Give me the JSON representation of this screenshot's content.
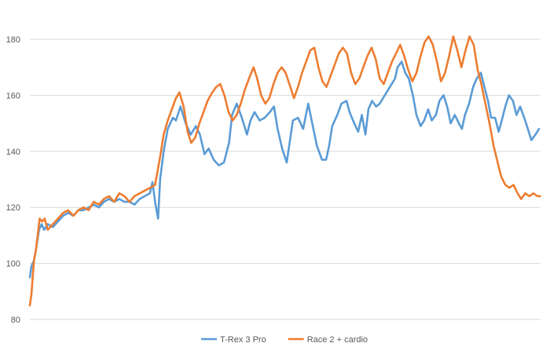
{
  "chart_data": {
    "type": "line",
    "title": "",
    "xlabel": "",
    "ylabel": "",
    "ylim": [
      80,
      180
    ],
    "yticks": [
      80,
      100,
      120,
      140,
      160,
      180
    ],
    "grid": "horizontal",
    "legend": "bottom",
    "x_range": [
      0,
      100
    ],
    "series": [
      {
        "name": "T-Rex 3 Pro",
        "color": "#5B9BD5",
        "points": [
          [
            0,
            95
          ],
          [
            0.3,
            99
          ],
          [
            0.8,
            101
          ],
          [
            1.2,
            105
          ],
          [
            1.8,
            112
          ],
          [
            2.3,
            114
          ],
          [
            2.8,
            112
          ],
          [
            3.5,
            114
          ],
          [
            4.5,
            113
          ],
          [
            5.5,
            115
          ],
          [
            6.5,
            117
          ],
          [
            7.5,
            118
          ],
          [
            8.5,
            117
          ],
          [
            9.5,
            119
          ],
          [
            10.5,
            119
          ],
          [
            11.5,
            120
          ],
          [
            12.5,
            121
          ],
          [
            13.5,
            120
          ],
          [
            14.5,
            122
          ],
          [
            15.5,
            123
          ],
          [
            16.5,
            122
          ],
          [
            17.5,
            123
          ],
          [
            18.5,
            122
          ],
          [
            19.5,
            122
          ],
          [
            20.5,
            121
          ],
          [
            21.5,
            123
          ],
          [
            22.5,
            124
          ],
          [
            23.5,
            125
          ],
          [
            24,
            129
          ],
          [
            24.6,
            121
          ],
          [
            25.1,
            116
          ],
          [
            25.5,
            130
          ],
          [
            26.2,
            140
          ],
          [
            27,
            148
          ],
          [
            28,
            152
          ],
          [
            28.6,
            151
          ],
          [
            29.5,
            156
          ],
          [
            30.5,
            150
          ],
          [
            31.5,
            146
          ],
          [
            32.5,
            149
          ],
          [
            33.3,
            146
          ],
          [
            34.2,
            139
          ],
          [
            35,
            141
          ],
          [
            36,
            137
          ],
          [
            37,
            135
          ],
          [
            38,
            136
          ],
          [
            39,
            143
          ],
          [
            39.6,
            153
          ],
          [
            40.5,
            157
          ],
          [
            41.5,
            152
          ],
          [
            42.5,
            146
          ],
          [
            43.2,
            151
          ],
          [
            44,
            154
          ],
          [
            45,
            151
          ],
          [
            46,
            152
          ],
          [
            47,
            154
          ],
          [
            47.8,
            156
          ],
          [
            48.5,
            148
          ],
          [
            49.4,
            141
          ],
          [
            50.3,
            136
          ],
          [
            51.5,
            151
          ],
          [
            52.5,
            152
          ],
          [
            53.5,
            148
          ],
          [
            54.5,
            157
          ],
          [
            55.3,
            150
          ],
          [
            56.2,
            142
          ],
          [
            57.2,
            137
          ],
          [
            58,
            137
          ],
          [
            58.6,
            142
          ],
          [
            59.2,
            149
          ],
          [
            60.2,
            153
          ],
          [
            61,
            157
          ],
          [
            62,
            158
          ],
          [
            62.6,
            154
          ],
          [
            63.5,
            150
          ],
          [
            64.3,
            147
          ],
          [
            65,
            153
          ],
          [
            65.7,
            146
          ],
          [
            66.3,
            155
          ],
          [
            67,
            158
          ],
          [
            67.8,
            156
          ],
          [
            68.5,
            157
          ],
          [
            69.5,
            160
          ],
          [
            70.5,
            163
          ],
          [
            71.5,
            166
          ],
          [
            72,
            170
          ],
          [
            72.8,
            172
          ],
          [
            73.5,
            168
          ],
          [
            74.2,
            166
          ],
          [
            75,
            160
          ],
          [
            75.7,
            153
          ],
          [
            76.5,
            149
          ],
          [
            77.2,
            151
          ],
          [
            78,
            155
          ],
          [
            78.7,
            151
          ],
          [
            79.5,
            153
          ],
          [
            80.2,
            158
          ],
          [
            81,
            160
          ],
          [
            81.7,
            156
          ],
          [
            82.4,
            150
          ],
          [
            83.2,
            153
          ],
          [
            84,
            150
          ],
          [
            84.6,
            148
          ],
          [
            85.2,
            153
          ],
          [
            86,
            157
          ],
          [
            86.8,
            163
          ],
          [
            87.5,
            166
          ],
          [
            88.3,
            168
          ],
          [
            89,
            163
          ],
          [
            89.7,
            158
          ],
          [
            90.3,
            152
          ],
          [
            91.1,
            152
          ],
          [
            91.8,
            147
          ],
          [
            92.4,
            151
          ],
          [
            93.1,
            156
          ],
          [
            93.8,
            160
          ],
          [
            94.6,
            158
          ],
          [
            95.3,
            153
          ],
          [
            96,
            156
          ],
          [
            96.8,
            152
          ],
          [
            97.5,
            148
          ],
          [
            98.2,
            144
          ],
          [
            99,
            146
          ],
          [
            99.7,
            148
          ]
        ]
      },
      {
        "name": "Race 2 + cardio",
        "color": "#ED7D31",
        "points": [
          [
            0,
            85
          ],
          [
            0.3,
            89
          ],
          [
            0.8,
            101
          ],
          [
            1.2,
            105
          ],
          [
            1.6,
            111
          ],
          [
            1.9,
            116
          ],
          [
            2.4,
            115
          ],
          [
            2.9,
            116
          ],
          [
            3.5,
            112
          ],
          [
            4.5,
            114
          ],
          [
            5.5,
            116
          ],
          [
            6.5,
            118
          ],
          [
            7.5,
            119
          ],
          [
            8.5,
            117
          ],
          [
            9.5,
            119
          ],
          [
            10.5,
            120
          ],
          [
            11.5,
            119
          ],
          [
            12.5,
            122
          ],
          [
            13.5,
            121
          ],
          [
            14.5,
            123
          ],
          [
            15.5,
            124
          ],
          [
            16.5,
            122
          ],
          [
            17.5,
            125
          ],
          [
            18.5,
            124
          ],
          [
            19.5,
            122
          ],
          [
            20.5,
            124
          ],
          [
            21.5,
            125
          ],
          [
            22.5,
            126
          ],
          [
            23.5,
            127
          ],
          [
            24.5,
            128
          ],
          [
            25.5,
            138
          ],
          [
            26.2,
            146
          ],
          [
            27,
            151
          ],
          [
            27.8,
            155
          ],
          [
            28.6,
            159
          ],
          [
            29.3,
            161
          ],
          [
            30.1,
            156
          ],
          [
            30.9,
            147
          ],
          [
            31.6,
            143
          ],
          [
            32.4,
            145
          ],
          [
            33.2,
            150
          ],
          [
            34,
            154
          ],
          [
            34.8,
            158
          ],
          [
            35.7,
            161
          ],
          [
            36.5,
            163
          ],
          [
            37.3,
            164
          ],
          [
            38.1,
            160
          ],
          [
            38.9,
            154
          ],
          [
            39.7,
            151
          ],
          [
            40.5,
            153
          ],
          [
            41.3,
            157
          ],
          [
            42.1,
            162
          ],
          [
            42.9,
            166
          ],
          [
            43.8,
            170
          ],
          [
            44.5,
            166
          ],
          [
            45.3,
            160
          ],
          [
            46.1,
            157
          ],
          [
            46.9,
            159
          ],
          [
            47.7,
            164
          ],
          [
            48.5,
            168
          ],
          [
            49.3,
            170
          ],
          [
            50.1,
            168
          ],
          [
            51,
            163
          ],
          [
            51.7,
            159
          ],
          [
            52.5,
            163
          ],
          [
            53.3,
            168
          ],
          [
            54.1,
            172
          ],
          [
            54.9,
            176
          ],
          [
            55.7,
            177
          ],
          [
            56.5,
            170
          ],
          [
            57.3,
            165
          ],
          [
            58.1,
            163
          ],
          [
            58.9,
            167
          ],
          [
            59.7,
            171
          ],
          [
            60.5,
            175
          ],
          [
            61.3,
            177
          ],
          [
            62.1,
            175
          ],
          [
            62.9,
            168
          ],
          [
            63.7,
            164
          ],
          [
            64.5,
            166
          ],
          [
            65.3,
            170
          ],
          [
            66.1,
            174
          ],
          [
            66.9,
            177
          ],
          [
            67.7,
            173
          ],
          [
            68.5,
            166
          ],
          [
            69.3,
            164
          ],
          [
            70.1,
            168
          ],
          [
            70.9,
            172
          ],
          [
            71.7,
            175
          ],
          [
            72.5,
            178
          ],
          [
            73.3,
            174
          ],
          [
            74.1,
            169
          ],
          [
            74.9,
            165
          ],
          [
            75.7,
            168
          ],
          [
            76.5,
            174
          ],
          [
            77.3,
            179
          ],
          [
            78.1,
            181
          ],
          [
            78.9,
            178
          ],
          [
            79.7,
            172
          ],
          [
            80.5,
            165
          ],
          [
            81.3,
            168
          ],
          [
            82.1,
            174
          ],
          [
            82.9,
            181
          ],
          [
            83.7,
            176
          ],
          [
            84.5,
            170
          ],
          [
            85.3,
            176
          ],
          [
            86.1,
            181
          ],
          [
            86.9,
            178
          ],
          [
            87.7,
            169
          ],
          [
            88.4,
            164
          ],
          [
            89.2,
            157
          ],
          [
            90,
            150
          ],
          [
            90.8,
            142
          ],
          [
            91.6,
            136
          ],
          [
            92.3,
            131
          ],
          [
            93.1,
            128
          ],
          [
            93.9,
            127
          ],
          [
            94.7,
            128
          ],
          [
            95.5,
            125
          ],
          [
            96.2,
            123
          ],
          [
            97,
            125
          ],
          [
            97.8,
            124
          ],
          [
            98.6,
            125
          ],
          [
            99.4,
            124
          ],
          [
            99.9,
            124
          ]
        ]
      }
    ]
  }
}
